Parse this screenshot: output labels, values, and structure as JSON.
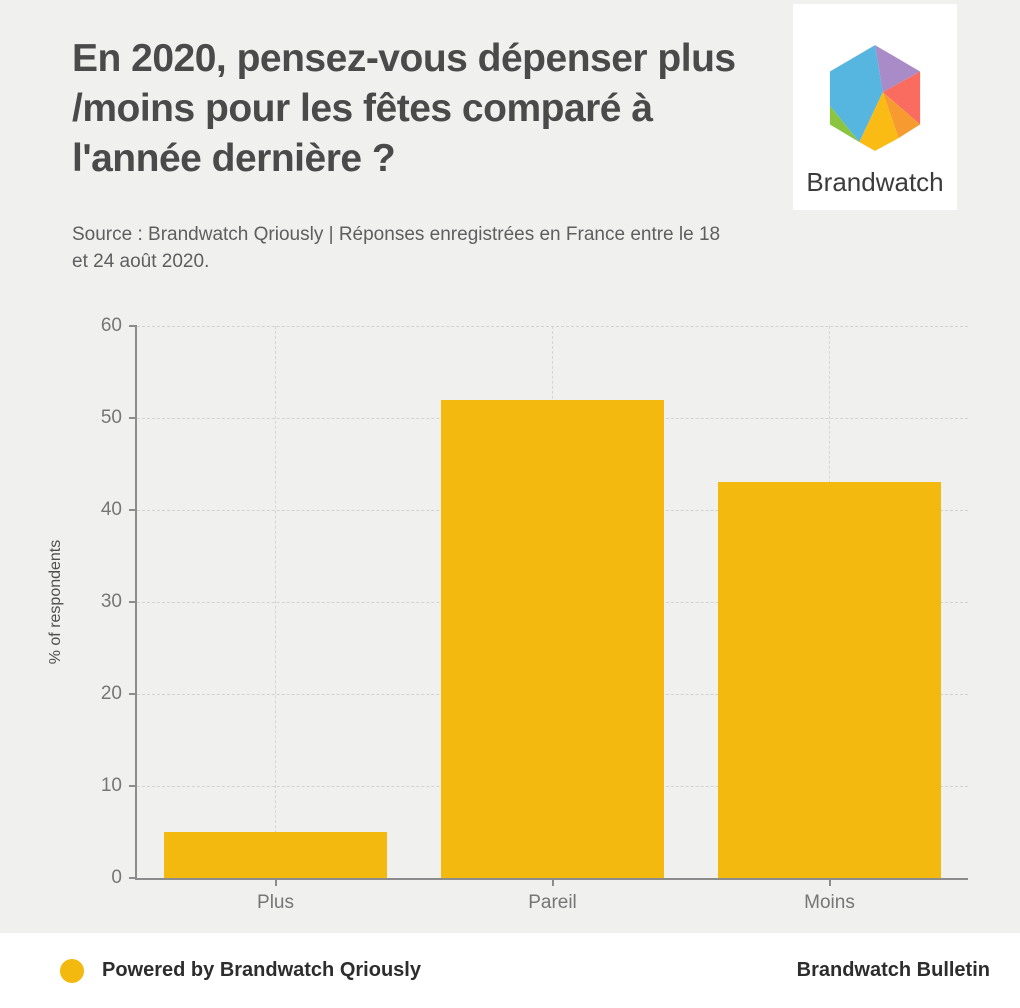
{
  "header": {
    "title": "En 2020, pensez-vous dépenser plus /moins pour les fêtes comparé à l'année dernière ?",
    "source": "Source : Brandwatch Qriously | Réponses enregistrées en France entre le 18 et 24 août 2020.",
    "logo": {
      "brand": "Brandwatch",
      "icon": "brandwatch-hexagon-logo",
      "colors": {
        "blue": "#57B6E0",
        "purple": "#A98BC7",
        "coral": "#F96C5F",
        "orange": "#F79B30",
        "yellow": "#FBBB15",
        "green": "#8BC540"
      }
    }
  },
  "chart_data": {
    "type": "bar",
    "categories": [
      "Plus",
      "Pareil",
      "Moins"
    ],
    "values": [
      5,
      52,
      43
    ],
    "title": "",
    "xlabel": "",
    "ylabel": "% of respondents",
    "ylim": [
      0,
      60
    ],
    "yticks": [
      0,
      10,
      20,
      30,
      40,
      50,
      60
    ],
    "grid": "dashed horizontal gridlines every 10, dashed vertical line at each category",
    "legend_position": "none",
    "bar_color": "#F4B90F"
  },
  "footer": {
    "powered_by": "Powered by Brandwatch Qriously",
    "bulletin": "Brandwatch Bulletin",
    "dot_color": "#F4B90F"
  },
  "colors": {
    "background": "#F0F0EF",
    "footer_background": "#FFFFFF",
    "title_text": "#4A4A4A",
    "axis_text": "#767676"
  }
}
